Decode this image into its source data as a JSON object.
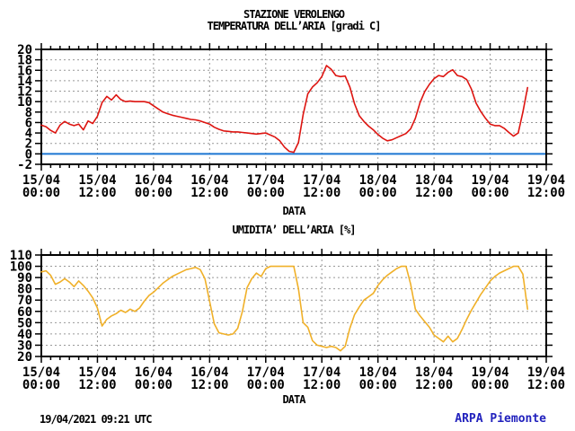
{
  "header": {
    "station_title": "STAZIONE VEROLENGO"
  },
  "footer": {
    "timestamp": "19/04/2021 09:21 UTC",
    "credit": "ARPA Piemonte"
  },
  "colors": {
    "temperature_line": "#dd1410",
    "humidity_line": "#f0b028",
    "zero_line": "#1c76d2",
    "grid": "#999999",
    "frame": "#000000",
    "credit_text": "#2121bd"
  },
  "chart_data": [
    {
      "type": "line",
      "title": "TEMPERATURA DELL’ARIA [gradi C]",
      "xlabel": "DATA",
      "x_start": "15/04/2021 00:00",
      "x_total_hours": 108,
      "x_tick_labels": [
        {
          "date": "15/04",
          "time": "00:00"
        },
        {
          "date": "15/04",
          "time": "12:00"
        },
        {
          "date": "16/04",
          "time": "00:00"
        },
        {
          "date": "16/04",
          "time": "12:00"
        },
        {
          "date": "17/04",
          "time": "00:00"
        },
        {
          "date": "17/04",
          "time": "12:00"
        },
        {
          "date": "18/04",
          "time": "00:00"
        },
        {
          "date": "18/04",
          "time": "12:00"
        },
        {
          "date": "19/04",
          "time": "00:00"
        },
        {
          "date": "19/04",
          "time": "12:00"
        }
      ],
      "ylim": [
        -2,
        20
      ],
      "ytick_step": 2,
      "zero_line": 0,
      "grid": "dashed",
      "legend_position": "none",
      "series": [
        {
          "name": "temperatura",
          "color": "#dd1410",
          "step_hours": 1,
          "values": [
            5.5,
            5.2,
            4.5,
            4.0,
            5.5,
            6.2,
            5.7,
            5.4,
            5.7,
            4.6,
            6.3,
            5.8,
            7.2,
            9.8,
            11.0,
            10.3,
            11.3,
            10.4,
            10.0,
            10.1,
            10.0,
            10.0,
            10.0,
            9.8,
            9.2,
            8.6,
            8.0,
            7.7,
            7.4,
            7.2,
            7.0,
            6.8,
            6.6,
            6.5,
            6.3,
            6.0,
            5.7,
            5.1,
            4.7,
            4.4,
            4.3,
            4.2,
            4.2,
            4.1,
            4.0,
            3.9,
            3.8,
            3.9,
            4.0,
            3.6,
            3.2,
            2.5,
            1.3,
            0.5,
            0.3,
            2.2,
            7.5,
            11.5,
            12.8,
            13.6,
            14.8,
            16.9,
            16.2,
            15.0,
            14.8,
            14.9,
            12.8,
            9.6,
            7.3,
            6.2,
            5.3,
            4.6,
            3.7,
            3.0,
            2.5,
            2.7,
            3.1,
            3.5,
            3.9,
            4.8,
            6.8,
            9.8,
            11.9,
            13.3,
            14.4,
            15.0,
            14.8,
            15.6,
            16.1,
            15.0,
            14.8,
            14.2,
            12.4,
            9.7,
            8.1,
            6.8,
            5.7,
            5.4,
            5.4,
            4.9,
            4.1,
            3.4,
            4.0,
            8.0,
            12.7
          ]
        }
      ]
    },
    {
      "type": "line",
      "title": "UMIDITA’ DELL’ARIA [%]",
      "xlabel": "DATA",
      "x_start": "15/04/2021 00:00",
      "x_total_hours": 108,
      "x_tick_labels": [
        {
          "date": "15/04",
          "time": "00:00"
        },
        {
          "date": "15/04",
          "time": "12:00"
        },
        {
          "date": "16/04",
          "time": "00:00"
        },
        {
          "date": "16/04",
          "time": "12:00"
        },
        {
          "date": "17/04",
          "time": "00:00"
        },
        {
          "date": "17/04",
          "time": "12:00"
        },
        {
          "date": "18/04",
          "time": "00:00"
        },
        {
          "date": "18/04",
          "time": "12:00"
        },
        {
          "date": "19/04",
          "time": "00:00"
        },
        {
          "date": "19/04",
          "time": "12:00"
        }
      ],
      "ylim": [
        20,
        110
      ],
      "ytick_step": 10,
      "grid": "dashed",
      "legend_position": "none",
      "series": [
        {
          "name": "umidita",
          "color": "#f0b028",
          "step_hours": 1,
          "values": [
            95,
            96,
            92,
            84,
            86,
            89,
            86,
            82,
            87,
            83,
            78,
            72,
            63,
            47,
            53,
            56,
            58,
            61,
            59,
            62,
            60,
            63,
            69,
            74,
            77,
            81,
            85,
            88,
            91,
            93,
            95,
            97,
            98,
            99,
            97,
            89,
            69,
            49,
            41,
            40,
            39,
            40,
            45,
            60,
            81,
            89,
            94,
            91,
            98,
            100,
            100,
            100,
            100,
            100,
            100,
            80,
            50,
            46,
            34,
            30,
            29,
            28,
            29,
            28,
            25,
            29,
            45,
            57,
            64,
            70,
            73,
            76,
            83,
            88,
            92,
            95,
            98,
            100,
            100,
            84,
            62,
            56,
            51,
            46,
            39,
            36,
            33,
            38,
            33,
            36,
            44,
            53,
            61,
            68,
            75,
            81,
            87,
            91,
            94,
            96,
            98,
            100,
            100,
            93,
            62
          ]
        }
      ]
    }
  ]
}
